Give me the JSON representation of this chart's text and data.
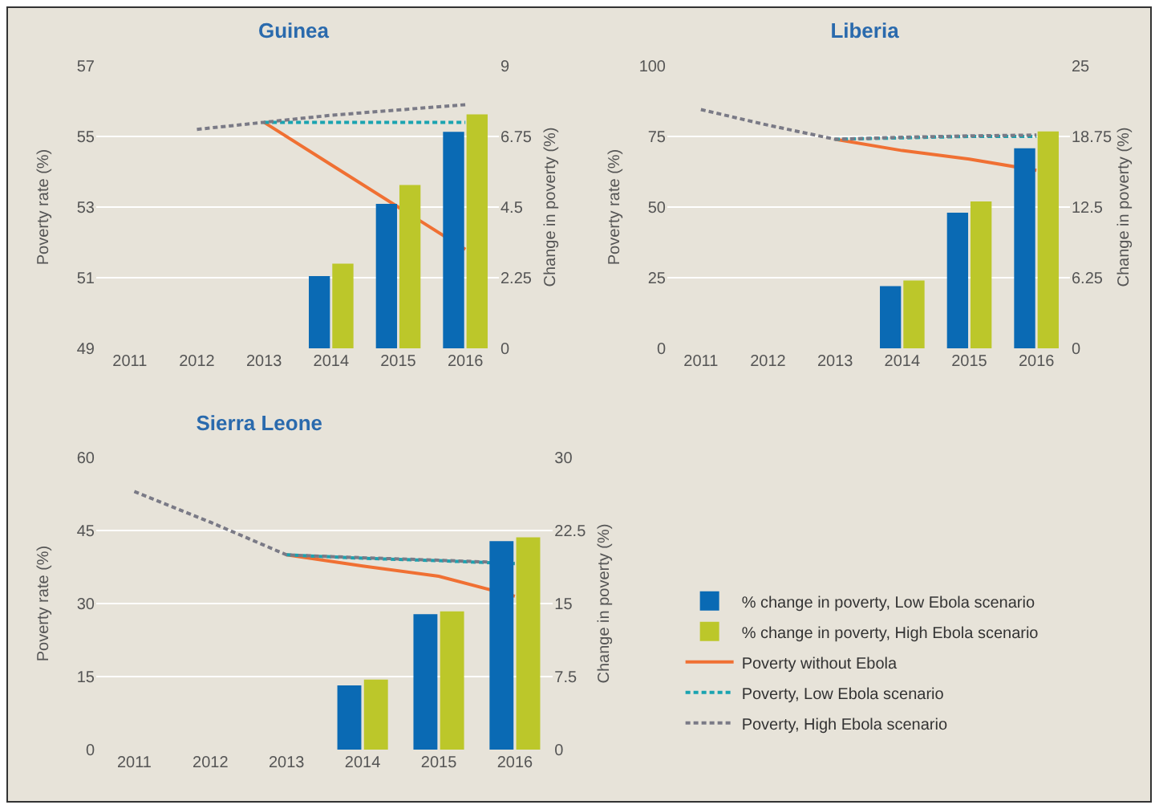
{
  "chart_data": [
    {
      "type": "bar",
      "title": "Guinea",
      "ylabel": "Poverty rate (%)",
      "y2label": "Change in poverty (%)",
      "categories": [
        "2011",
        "2012",
        "2013",
        "2014",
        "2015",
        "2016"
      ],
      "ylim": [
        49,
        57
      ],
      "yticks": [
        49,
        51,
        53,
        55,
        57
      ],
      "y2lim": [
        0,
        9
      ],
      "y2ticks": [
        0,
        2.25,
        4.5,
        6.75,
        9
      ],
      "grid": "y",
      "series": [
        {
          "type": "bar",
          "axis": "y2",
          "color": "#0a6ab4",
          "values": [
            null,
            null,
            null,
            2.3,
            4.6,
            6.9
          ]
        },
        {
          "type": "bar",
          "axis": "y2",
          "color": "#bcc72a",
          "values": [
            null,
            null,
            null,
            2.7,
            5.2,
            7.45
          ]
        },
        {
          "type": "line",
          "color": "#f07033",
          "line_style": "solid",
          "values": [
            null,
            null,
            55.4,
            54.2,
            53.0,
            51.8
          ]
        },
        {
          "type": "line",
          "color": "#1aa3b0",
          "line_style": "dashed",
          "values": [
            null,
            null,
            55.4,
            55.4,
            55.4,
            55.4
          ]
        },
        {
          "type": "line",
          "color": "#7a7a86",
          "line_style": "dashed",
          "values": [
            null,
            55.2,
            55.4,
            55.6,
            55.75,
            55.9
          ]
        }
      ]
    },
    {
      "type": "bar",
      "title": "Liberia",
      "ylabel": "Poverty rate (%)",
      "y2label": "Change in poverty (%)",
      "categories": [
        "2011",
        "2012",
        "2013",
        "2014",
        "2015",
        "2016"
      ],
      "ylim": [
        0,
        100
      ],
      "yticks": [
        0,
        25,
        50,
        75,
        100
      ],
      "y2lim": [
        0,
        25
      ],
      "y2ticks": [
        0,
        6.25,
        12.5,
        18.75,
        25
      ],
      "grid": "y",
      "series": [
        {
          "type": "bar",
          "axis": "y2",
          "color": "#0a6ab4",
          "values": [
            null,
            null,
            null,
            5.5,
            12.0,
            17.7
          ]
        },
        {
          "type": "bar",
          "axis": "y2",
          "color": "#bcc72a",
          "values": [
            null,
            null,
            null,
            6.0,
            13.0,
            19.2
          ]
        },
        {
          "type": "line",
          "color": "#f07033",
          "line_style": "solid",
          "values": [
            null,
            null,
            74,
            70,
            67,
            63
          ]
        },
        {
          "type": "line",
          "color": "#1aa3b0",
          "line_style": "dashed",
          "values": [
            null,
            null,
            74,
            74.5,
            75,
            75
          ]
        },
        {
          "type": "line",
          "color": "#7a7a86",
          "line_style": "dashed",
          "values": [
            84.5,
            79,
            74,
            74.7,
            75.2,
            75.5
          ]
        }
      ]
    },
    {
      "type": "bar",
      "title": "Sierra Leone",
      "ylabel": "Poverty rate (%)",
      "y2label": "Change in poverty (%)",
      "categories": [
        "2011",
        "2012",
        "2013",
        "2014",
        "2015",
        "2016"
      ],
      "ylim": [
        0,
        60
      ],
      "yticks": [
        0,
        15,
        30,
        45,
        60
      ],
      "y2lim": [
        0,
        30
      ],
      "y2ticks": [
        0,
        7.5,
        15,
        22.5,
        30
      ],
      "grid": "y",
      "legend": "right",
      "series": [
        {
          "type": "bar",
          "axis": "y2",
          "name": "% change in poverty, Low Ebola scenario",
          "color": "#0a6ab4",
          "values": [
            null,
            null,
            null,
            6.6,
            13.9,
            21.4
          ]
        },
        {
          "type": "bar",
          "axis": "y2",
          "name": "% change in poverty, High Ebola scenario",
          "color": "#bcc72a",
          "values": [
            null,
            null,
            null,
            7.2,
            14.2,
            21.8
          ]
        },
        {
          "type": "line",
          "name": "Poverty without Ebola",
          "color": "#f07033",
          "line_style": "solid",
          "values": [
            null,
            null,
            40,
            37.7,
            35.6,
            31.5
          ]
        },
        {
          "type": "line",
          "name": "Poverty, Low Ebola scenario",
          "color": "#1aa3b0",
          "line_style": "dashed",
          "values": [
            null,
            null,
            40,
            39.3,
            38.8,
            38.2
          ]
        },
        {
          "type": "line",
          "name": "Poverty, High Ebola scenario",
          "color": "#7a7a86",
          "line_style": "dashed",
          "values": [
            53,
            46.7,
            40,
            39.4,
            38.9,
            38.3
          ]
        }
      ]
    }
  ]
}
